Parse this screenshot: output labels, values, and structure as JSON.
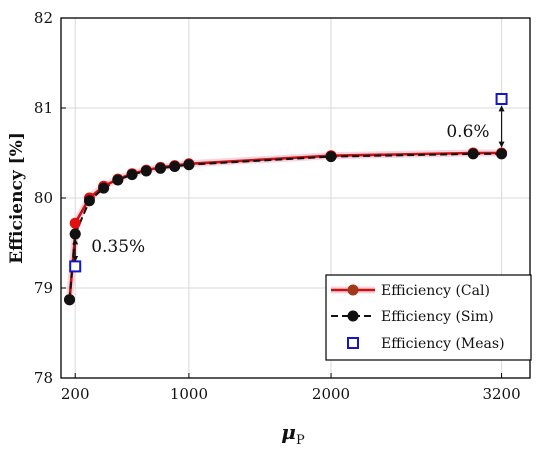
{
  "chart_data": {
    "type": "line",
    "xlabel": "μ",
    "xlabel_subscript": "P",
    "ylabel": "Efficiency [%]",
    "xlim": [
      100,
      3400
    ],
    "ylim": [
      78,
      82
    ],
    "xticks": [
      200,
      1000,
      2000,
      3200
    ],
    "yticks": [
      78,
      79,
      80,
      81,
      82
    ],
    "grid": true,
    "legend_position": "bottom-right",
    "colors": {
      "cal": "#cc1111",
      "cal_marker": "#e01010",
      "sim": "#111111",
      "meas": "#1515cc"
    },
    "series": [
      {
        "name": "Efficiency (Cal)",
        "style": "solid-line-circle",
        "x": [
          160,
          200,
          200,
          300,
          400,
          500,
          600,
          700,
          800,
          900,
          1000,
          2000,
          3000,
          3200
        ],
        "y": [
          78.87,
          79.6,
          79.72,
          80.0,
          80.13,
          80.21,
          80.27,
          80.31,
          80.34,
          80.36,
          80.38,
          80.47,
          80.5,
          80.5
        ]
      },
      {
        "name": "Efficiency (Sim)",
        "style": "dashed-line-circle",
        "x": [
          160,
          200,
          300,
          400,
          500,
          600,
          700,
          800,
          900,
          1000,
          2000,
          3000,
          3200
        ],
        "y": [
          78.87,
          79.6,
          79.97,
          80.11,
          80.2,
          80.26,
          80.3,
          80.33,
          80.35,
          80.37,
          80.46,
          80.49,
          80.49
        ]
      },
      {
        "name": "Efficiency (Meas)",
        "style": "square-marker",
        "x": [
          200,
          3200
        ],
        "y": [
          79.24,
          81.1
        ]
      }
    ],
    "annotations": [
      {
        "text": "0.35%",
        "x": 200,
        "y_from": 79.6,
        "y_to": 79.24
      },
      {
        "text": "0.6%",
        "x": 3200,
        "y_from": 80.5,
        "y_to": 81.1
      }
    ]
  }
}
